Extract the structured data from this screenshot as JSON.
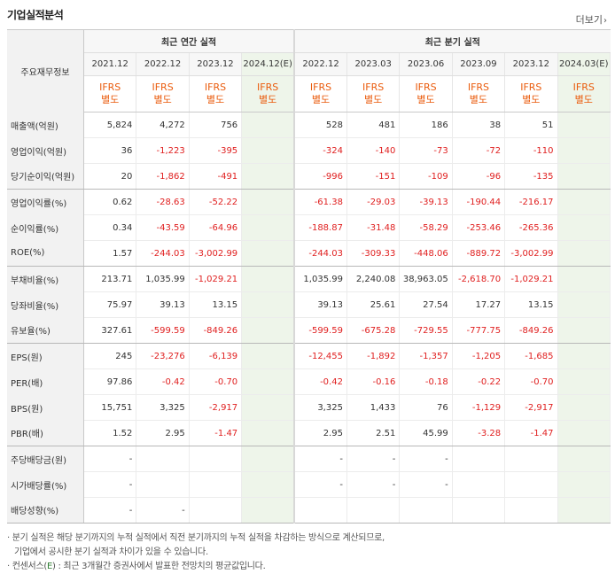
{
  "header": {
    "title": "기업실적분석",
    "more_label": "더보기",
    "more_icon": "chevron-right-icon"
  },
  "table": {
    "row_header_label": "주요재무정보",
    "annual_group_label": "최근 연간 실적",
    "quarter_group_label": "최근 분기 실적",
    "annual_periods": [
      "2021.12",
      "2022.12",
      "2023.12",
      "2024.12(E)"
    ],
    "quarter_periods": [
      "2022.12",
      "2023.03",
      "2023.06",
      "2023.09",
      "2023.12",
      "2024.03(E)"
    ],
    "ifrs_top": "IFRS",
    "ifrs_bottom": "별도",
    "rows": [
      {
        "label": "매출액(억원)",
        "annual": [
          "5,824",
          "4,272",
          "756",
          ""
        ],
        "quarter": [
          "528",
          "481",
          "186",
          "38",
          "51",
          ""
        ]
      },
      {
        "label": "영업이익(억원)",
        "annual": [
          "36",
          "-1,223",
          "-395",
          ""
        ],
        "quarter": [
          "-324",
          "-140",
          "-73",
          "-72",
          "-110",
          ""
        ]
      },
      {
        "label": "당기순이익(억원)",
        "annual": [
          "20",
          "-1,862",
          "-491",
          ""
        ],
        "quarter": [
          "-996",
          "-151",
          "-109",
          "-96",
          "-135",
          ""
        ]
      },
      {
        "label": "영업이익률(%)",
        "annual": [
          "0.62",
          "-28.63",
          "-52.22",
          ""
        ],
        "quarter": [
          "-61.38",
          "-29.03",
          "-39.13",
          "-190.44",
          "-216.17",
          ""
        ]
      },
      {
        "label": "순이익률(%)",
        "annual": [
          "0.34",
          "-43.59",
          "-64.96",
          ""
        ],
        "quarter": [
          "-188.87",
          "-31.48",
          "-58.29",
          "-253.46",
          "-265.36",
          ""
        ]
      },
      {
        "label": "ROE(%)",
        "annual": [
          "1.57",
          "-244.03",
          "-3,002.99",
          ""
        ],
        "quarter": [
          "-244.03",
          "-309.33",
          "-448.06",
          "-889.72",
          "-3,002.99",
          ""
        ]
      },
      {
        "label": "부채비율(%)",
        "annual": [
          "213.71",
          "1,035.99",
          "-1,029.21",
          ""
        ],
        "quarter": [
          "1,035.99",
          "2,240.08",
          "38,963.05",
          "-2,618.70",
          "-1,029.21",
          ""
        ]
      },
      {
        "label": "당좌비율(%)",
        "annual": [
          "75.97",
          "39.13",
          "13.15",
          ""
        ],
        "quarter": [
          "39.13",
          "25.61",
          "27.54",
          "17.27",
          "13.15",
          ""
        ]
      },
      {
        "label": "유보율(%)",
        "annual": [
          "327.61",
          "-599.59",
          "-849.26",
          ""
        ],
        "quarter": [
          "-599.59",
          "-675.28",
          "-729.55",
          "-777.75",
          "-849.26",
          ""
        ]
      },
      {
        "label": "EPS(원)",
        "annual": [
          "245",
          "-23,276",
          "-6,139",
          ""
        ],
        "quarter": [
          "-12,455",
          "-1,892",
          "-1,357",
          "-1,205",
          "-1,685",
          ""
        ]
      },
      {
        "label": "PER(배)",
        "annual": [
          "97.86",
          "-0.42",
          "-0.70",
          ""
        ],
        "quarter": [
          "-0.42",
          "-0.16",
          "-0.18",
          "-0.22",
          "-0.70",
          ""
        ]
      },
      {
        "label": "BPS(원)",
        "annual": [
          "15,751",
          "3,325",
          "-2,917",
          ""
        ],
        "quarter": [
          "3,325",
          "1,433",
          "76",
          "-1,129",
          "-2,917",
          ""
        ]
      },
      {
        "label": "PBR(배)",
        "annual": [
          "1.52",
          "2.95",
          "-1.47",
          ""
        ],
        "quarter": [
          "2.95",
          "2.51",
          "45.99",
          "-3.28",
          "-1.47",
          ""
        ]
      },
      {
        "label": "주당배당금(원)",
        "annual": [
          "-",
          "",
          "",
          ""
        ],
        "quarter": [
          "-",
          "-",
          "-",
          "",
          "",
          ""
        ]
      },
      {
        "label": "시가배당률(%)",
        "annual": [
          "-",
          "",
          "",
          ""
        ],
        "quarter": [
          "-",
          "-",
          "-",
          "",
          "",
          ""
        ]
      },
      {
        "label": "배당성향(%)",
        "annual": [
          "-",
          "-",
          "",
          ""
        ],
        "quarter": [
          "",
          "",
          "",
          "",
          "",
          ""
        ]
      }
    ]
  },
  "notes": {
    "line1": "· 분기 실적은 해당 분기까지의 누적 실적에서 직전 분기까지의 누적 실적을 차감하는 방식으로 계산되므로,",
    "line2": "기업에서 공시한 분기 실적과 차이가 있을 수 있습니다.",
    "line3_prefix": "· 컨센서스(",
    "line3_e": "E",
    "line3_suffix": ") : 최근 3개월간 증권사에서 발표한 전망치의 평균값입니다."
  },
  "colors": {
    "negative": "#e02020",
    "ifrs": "#ea5b0c",
    "estimate_bg": "#eef5ea",
    "estimate_e": "#2e7d32"
  }
}
